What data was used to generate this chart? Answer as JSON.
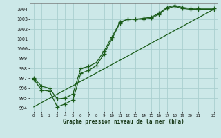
{
  "xlabel": "Graphe pression niveau de la mer (hPa)",
  "background_color": "#cce8e8",
  "grid_color": "#aacfcf",
  "line_color": "#1a5c1a",
  "x_ticks": [
    0,
    1,
    2,
    3,
    4,
    5,
    6,
    7,
    8,
    9,
    10,
    11,
    12,
    13,
    14,
    15,
    16,
    17,
    18,
    19,
    20,
    21,
    23
  ],
  "xlim": [
    -0.5,
    23.5
  ],
  "ylim": [
    993.6,
    1004.6
  ],
  "y_ticks": [
    994,
    995,
    996,
    997,
    998,
    999,
    1000,
    1001,
    1002,
    1003,
    1004
  ],
  "s1x": [
    0,
    1,
    2,
    3,
    4,
    5,
    6,
    7,
    8,
    9,
    10,
    11,
    12,
    13,
    14,
    15,
    16,
    17,
    18,
    19,
    20,
    21,
    23
  ],
  "s1y": [
    996.9,
    995.8,
    995.7,
    994.1,
    994.4,
    994.8,
    997.5,
    997.8,
    998.3,
    999.5,
    1001.0,
    1002.6,
    1003.0,
    1003.0,
    1003.0,
    1003.1,
    1003.5,
    1004.1,
    1004.3,
    1004.1,
    1004.0,
    1004.0,
    1004.0
  ],
  "s2x": [
    0,
    1,
    2,
    3,
    4,
    5,
    6,
    7,
    8,
    9,
    10,
    11,
    12,
    13,
    14,
    15,
    16,
    17,
    18,
    19,
    20,
    21,
    23
  ],
  "s2y": [
    997.0,
    996.2,
    996.0,
    994.9,
    995.0,
    995.4,
    998.0,
    998.2,
    998.6,
    999.8,
    1001.2,
    1002.7,
    1003.0,
    1003.0,
    1003.1,
    1003.2,
    1003.6,
    1004.2,
    1004.4,
    1004.2,
    1004.1,
    1004.1,
    1004.1
  ],
  "s3x": [
    0,
    23
  ],
  "s3y": [
    994.1,
    1004.0
  ]
}
